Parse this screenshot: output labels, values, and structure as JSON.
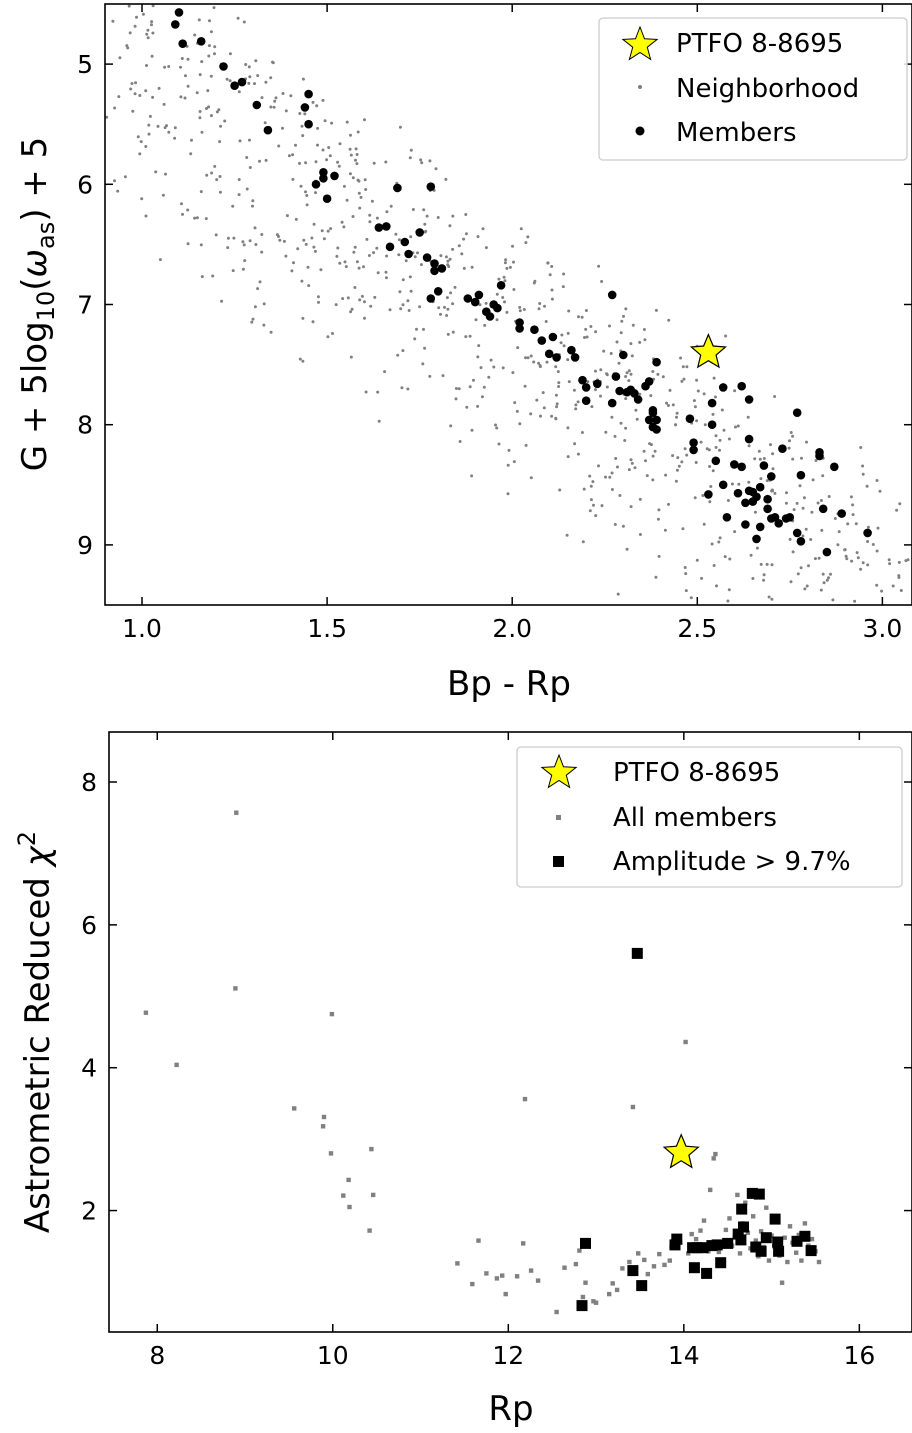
{
  "chart_data": [
    {
      "type": "scatter",
      "xlabel": "Bp - Rp",
      "ylabel": {
        "before": "G + 5log",
        "sub1": "10",
        "mid": "(",
        "omega": "ω",
        "sub2": "as",
        "after": ") + 5"
      },
      "xlim": [
        0.9,
        3.08
      ],
      "ylim": [
        9.5,
        4.5
      ],
      "y_inverted": true,
      "xticks": [
        1.0,
        1.5,
        2.0,
        2.5,
        3.0
      ],
      "xtick_labels": [
        "1.0",
        "1.5",
        "2.0",
        "2.5",
        "3.0"
      ],
      "yticks": [
        5,
        6,
        7,
        8,
        9
      ],
      "ytick_labels": [
        "5",
        "6",
        "7",
        "8",
        "9"
      ],
      "grid": false,
      "legend_position": "top-right",
      "legend": [
        "PTFO 8-8695",
        "Neighborhood",
        "Members"
      ],
      "colors": {
        "star": "#ffff00",
        "neighborhood": "#808080",
        "members": "#000000"
      },
      "series": [
        {
          "name": "PTFO 8-8695",
          "marker": "star",
          "points": [
            [
              2.53,
              7.4
            ]
          ]
        },
        {
          "name": "Members",
          "marker": "circle",
          "points": [
            [
              1.09,
              4.67
            ],
            [
              1.1,
              4.57
            ],
            [
              1.11,
              4.83
            ],
            [
              1.16,
              4.81
            ],
            [
              1.22,
              5.02
            ],
            [
              1.25,
              5.18
            ],
            [
              1.27,
              5.15
            ],
            [
              1.31,
              5.34
            ],
            [
              1.34,
              5.55
            ],
            [
              1.45,
              5.25
            ],
            [
              1.45,
              5.5
            ],
            [
              1.44,
              5.36
            ],
            [
              1.47,
              6.0
            ],
            [
              1.49,
              5.9
            ],
            [
              1.5,
              6.12
            ],
            [
              1.49,
              5.95
            ],
            [
              1.52,
              5.93
            ],
            [
              1.69,
              6.03
            ],
            [
              1.78,
              6.02
            ],
            [
              1.64,
              6.36
            ],
            [
              1.66,
              6.35
            ],
            [
              1.67,
              6.52
            ],
            [
              1.71,
              6.48
            ],
            [
              1.72,
              6.58
            ],
            [
              1.75,
              6.4
            ],
            [
              1.77,
              6.61
            ],
            [
              1.79,
              6.66
            ],
            [
              1.79,
              6.72
            ],
            [
              1.81,
              6.7
            ],
            [
              1.78,
              6.95
            ],
            [
              1.8,
              6.89
            ],
            [
              1.88,
              6.95
            ],
            [
              1.9,
              6.98
            ],
            [
              1.91,
              6.92
            ],
            [
              1.93,
              7.06
            ],
            [
              1.95,
              7.0
            ],
            [
              1.96,
              7.03
            ],
            [
              1.94,
              7.1
            ],
            [
              1.97,
              6.84
            ],
            [
              2.02,
              7.15
            ],
            [
              2.02,
              7.2
            ],
            [
              2.06,
              7.21
            ],
            [
              2.08,
              7.3
            ],
            [
              2.1,
              7.41
            ],
            [
              2.11,
              7.27
            ],
            [
              2.12,
              7.44
            ],
            [
              2.16,
              7.38
            ],
            [
              2.17,
              7.44
            ],
            [
              2.19,
              7.63
            ],
            [
              2.2,
              7.69
            ],
            [
              2.2,
              7.8
            ],
            [
              2.23,
              7.66
            ],
            [
              2.27,
              6.92
            ],
            [
              2.27,
              7.82
            ],
            [
              2.28,
              7.6
            ],
            [
              2.29,
              7.72
            ],
            [
              2.3,
              7.42
            ],
            [
              2.31,
              7.73
            ],
            [
              2.32,
              7.71
            ],
            [
              2.33,
              7.74
            ],
            [
              2.34,
              7.79
            ],
            [
              2.36,
              7.68
            ],
            [
              2.37,
              7.96
            ],
            [
              2.38,
              7.88
            ],
            [
              2.38,
              8.02
            ],
            [
              2.38,
              7.9
            ],
            [
              2.39,
              8.04
            ],
            [
              2.39,
              7.48
            ],
            [
              2.39,
              7.96
            ],
            [
              2.37,
              7.64
            ],
            [
              2.48,
              7.95
            ],
            [
              2.49,
              8.15
            ],
            [
              2.49,
              8.21
            ],
            [
              2.53,
              8.58
            ],
            [
              2.54,
              7.82
            ],
            [
              2.55,
              8.3
            ],
            [
              2.54,
              8.0
            ],
            [
              2.57,
              7.69
            ],
            [
              2.57,
              8.5
            ],
            [
              2.58,
              8.77
            ],
            [
              2.6,
              8.33
            ],
            [
              2.61,
              8.57
            ],
            [
              2.62,
              8.35
            ],
            [
              2.62,
              7.68
            ],
            [
              2.63,
              8.65
            ],
            [
              2.63,
              8.83
            ],
            [
              2.64,
              8.55
            ],
            [
              2.64,
              8.12
            ],
            [
              2.64,
              7.79
            ],
            [
              2.65,
              8.56
            ],
            [
              2.65,
              8.64
            ],
            [
              2.66,
              8.6
            ],
            [
              2.66,
              8.95
            ],
            [
              2.67,
              8.52
            ],
            [
              2.67,
              8.85
            ],
            [
              2.68,
              8.34
            ],
            [
              2.69,
              8.62
            ],
            [
              2.69,
              8.7
            ],
            [
              2.7,
              8.78
            ],
            [
              2.7,
              8.43
            ],
            [
              2.71,
              8.77
            ],
            [
              2.72,
              8.82
            ],
            [
              2.73,
              8.2
            ],
            [
              2.74,
              8.78
            ],
            [
              2.75,
              8.77
            ],
            [
              2.77,
              8.9
            ],
            [
              2.77,
              7.9
            ],
            [
              2.78,
              8.42
            ],
            [
              2.78,
              8.97
            ],
            [
              2.83,
              8.23
            ],
            [
              2.83,
              8.26
            ],
            [
              2.84,
              8.7
            ],
            [
              2.85,
              9.06
            ],
            [
              2.87,
              8.35
            ],
            [
              2.89,
              8.74
            ],
            [
              2.96,
              8.9
            ]
          ]
        },
        {
          "name": "Neighborhood",
          "marker": "dot",
          "points": "dense cloud (~1000 points) spanning Bp-Rp 0.9-3.08 and 4.5-9.5 mag, along and below the member sequence"
        }
      ]
    },
    {
      "type": "scatter",
      "xlabel": "Rp",
      "ylabel": {
        "text": "Astrometric Reduced ",
        "chi": "χ",
        "sup": "2"
      },
      "xlim": [
        7.45,
        16.6
      ],
      "ylim": [
        0.3,
        8.7
      ],
      "xticks": [
        8,
        10,
        12,
        14,
        16
      ],
      "xtick_labels": [
        "8",
        "10",
        "12",
        "14",
        "16"
      ],
      "yticks": [
        2,
        4,
        6,
        8
      ],
      "ytick_labels": [
        "2",
        "4",
        "6",
        "8"
      ],
      "grid": false,
      "legend_position": "top-right",
      "legend": [
        "PTFO 8-8695",
        "All members",
        "Amplitude > 9.7%"
      ],
      "colors": {
        "star": "#ffff00",
        "members": "#808080",
        "amplitude": "#000000"
      },
      "series": [
        {
          "name": "PTFO 8-8695",
          "marker": "star",
          "points": [
            [
              13.97,
              2.81
            ]
          ]
        },
        {
          "name": "All members",
          "marker": "small-square",
          "points": [
            [
              7.87,
              4.77
            ],
            [
              8.22,
              4.04
            ],
            [
              8.9,
              7.57
            ],
            [
              8.89,
              5.11
            ],
            [
              9.56,
              3.43
            ],
            [
              9.9,
              3.31
            ],
            [
              9.89,
              3.18
            ],
            [
              9.99,
              4.75
            ],
            [
              9.98,
              2.8
            ],
            [
              10.12,
              2.21
            ],
            [
              10.18,
              2.43
            ],
            [
              10.19,
              2.05
            ],
            [
              10.42,
              1.72
            ],
            [
              10.44,
              2.86
            ],
            [
              10.46,
              2.22
            ],
            [
              11.42,
              1.26
            ],
            [
              11.59,
              0.97
            ],
            [
              11.66,
              1.58
            ],
            [
              11.75,
              1.12
            ],
            [
              11.87,
              1.05
            ],
            [
              11.93,
              1.09
            ],
            [
              11.97,
              0.83
            ],
            [
              12.1,
              1.08
            ],
            [
              12.17,
              1.54
            ],
            [
              12.19,
              3.56
            ],
            [
              12.26,
              1.16
            ],
            [
              12.34,
              1.02
            ],
            [
              12.55,
              0.58
            ],
            [
              12.64,
              1.2
            ],
            [
              12.77,
              1.25
            ],
            [
              12.81,
              1.44
            ],
            [
              12.85,
              0.79
            ],
            [
              12.88,
              0.99
            ],
            [
              12.97,
              0.73
            ],
            [
              13.0,
              0.71
            ],
            [
              13.15,
              0.83
            ],
            [
              13.19,
              0.98
            ],
            [
              13.24,
              0.89
            ],
            [
              13.3,
              1.19
            ],
            [
              13.38,
              1.28
            ],
            [
              13.42,
              3.45
            ],
            [
              13.48,
              1.4
            ],
            [
              13.55,
              1.31
            ],
            [
              13.59,
              1.11
            ],
            [
              13.66,
              1.22
            ],
            [
              13.72,
              1.39
            ],
            [
              13.78,
              1.24
            ],
            [
              13.84,
              1.3
            ],
            [
              13.86,
              1.49
            ],
            [
              13.92,
              1.62
            ],
            [
              13.96,
              1.55
            ],
            [
              14.02,
              4.36
            ],
            [
              14.05,
              1.4
            ],
            [
              14.09,
              1.67
            ],
            [
              14.14,
              1.6
            ],
            [
              14.19,
              1.72
            ],
            [
              14.23,
              1.86
            ],
            [
              14.28,
              1.43
            ],
            [
              14.3,
              2.29
            ],
            [
              14.34,
              2.73
            ],
            [
              14.36,
              2.79
            ],
            [
              14.4,
              1.42
            ],
            [
              14.45,
              1.55
            ],
            [
              14.48,
              1.73
            ],
            [
              14.52,
              1.89
            ],
            [
              14.55,
              1.51
            ],
            [
              14.58,
              1.64
            ],
            [
              14.61,
              2.22
            ],
            [
              14.64,
              1.4
            ],
            [
              14.67,
              1.82
            ],
            [
              14.7,
              2.11
            ],
            [
              14.73,
              1.69
            ],
            [
              14.76,
              1.47
            ],
            [
              14.79,
              1.92
            ],
            [
              14.82,
              1.58
            ],
            [
              14.85,
              1.36
            ],
            [
              14.88,
              1.71
            ],
            [
              14.91,
              1.49
            ],
            [
              14.94,
              2.04
            ],
            [
              14.97,
              1.3
            ],
            [
              15.0,
              1.65
            ],
            [
              15.03,
              1.5
            ],
            [
              15.07,
              1.85
            ],
            [
              15.09,
              1.37
            ],
            [
              15.12,
              0.99
            ],
            [
              15.15,
              1.62
            ],
            [
              15.18,
              1.28
            ],
            [
              15.21,
              1.78
            ],
            [
              15.24,
              1.55
            ],
            [
              15.28,
              1.41
            ],
            [
              15.31,
              1.66
            ],
            [
              15.34,
              1.3
            ],
            [
              15.38,
              1.82
            ],
            [
              15.42,
              1.51
            ],
            [
              15.46,
              1.6
            ],
            [
              15.5,
              1.43
            ],
            [
              15.54,
              1.28
            ]
          ]
        },
        {
          "name": "Amplitude > 9.7%",
          "marker": "square",
          "points": [
            [
              12.84,
              0.67
            ],
            [
              12.88,
              1.54
            ],
            [
              13.42,
              1.16
            ],
            [
              13.47,
              5.6
            ],
            [
              13.52,
              0.95
            ],
            [
              13.9,
              1.52
            ],
            [
              13.92,
              1.6
            ],
            [
              14.1,
              1.48
            ],
            [
              14.12,
              1.2
            ],
            [
              14.15,
              1.48
            ],
            [
              14.22,
              1.48
            ],
            [
              14.26,
              1.12
            ],
            [
              14.32,
              1.51
            ],
            [
              14.38,
              1.52
            ],
            [
              14.42,
              1.27
            ],
            [
              14.5,
              1.54
            ],
            [
              14.62,
              1.67
            ],
            [
              14.65,
              1.59
            ],
            [
              14.66,
              2.02
            ],
            [
              14.68,
              1.77
            ],
            [
              14.78,
              2.24
            ],
            [
              14.82,
              1.49
            ],
            [
              14.86,
              2.23
            ],
            [
              14.88,
              1.43
            ],
            [
              14.94,
              1.62
            ],
            [
              15.04,
              1.88
            ],
            [
              15.07,
              1.56
            ],
            [
              15.08,
              1.43
            ],
            [
              15.29,
              1.57
            ],
            [
              15.38,
              1.64
            ],
            [
              15.45,
              1.44
            ]
          ]
        }
      ]
    }
  ]
}
